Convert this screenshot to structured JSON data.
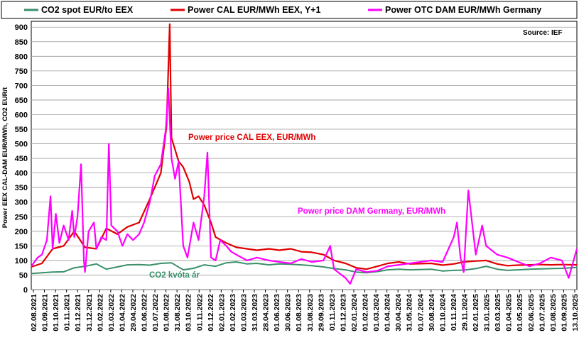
{
  "chart_data": {
    "type": "line",
    "ylabel": "Power EEX CAL-DAM EUR/MWh, CO2 EUR/t",
    "ylim": [
      0,
      920
    ],
    "yticks": [
      0,
      50,
      100,
      150,
      200,
      250,
      300,
      350,
      400,
      450,
      500,
      550,
      600,
      650,
      700,
      750,
      800,
      850,
      900
    ],
    "x_start": "2021-08-02",
    "x_end": "2025-10-13",
    "xticks": [
      "02.08.2021",
      "01.09.2021",
      "01.10.2021",
      "01.11.2021",
      "01.12.2021",
      "31.12.2021",
      "01.02.2022",
      "01.03.2022",
      "01.04.2022",
      "29.04.2022",
      "01.06.2022",
      "01.07.2022",
      "01.08.2022",
      "31.08.2022",
      "03.10.2022",
      "01.11.2022",
      "01.12.2022",
      "02.01.2023",
      "01.02.2023",
      "01.03.2023",
      "31.03.2023",
      "28.04.2023",
      "01.06.2023",
      "30.06.2023",
      "01.08.2023",
      "31.08.2023",
      "29.09.2023",
      "01.11.2023",
      "01.12.2023",
      "02.01.2024",
      "01.02.2024",
      "01.03.2024",
      "01.04.2024",
      "30.04.2024",
      "31.05.2024",
      "01.07.2024",
      "30.08.2024",
      "01.10.2024",
      "01.11.2024",
      "29.11.2024",
      "02.01.2025",
      "31.01.2025",
      "03.03.2025",
      "01.04.2025",
      "01.05.2025",
      "02.06.2025",
      "01.07.2025",
      "01.08.2025",
      "01.09.2025",
      "13.10.2025"
    ],
    "grid": true,
    "legend_position": "top",
    "source": "Source: IEF",
    "series": [
      {
        "name": "CO2 spot EUR/to EEX",
        "color": "#3a8f6a",
        "points": [
          [
            "2021-08-02",
            55
          ],
          [
            "2021-09-01",
            58
          ],
          [
            "2021-10-01",
            60
          ],
          [
            "2021-11-01",
            61
          ],
          [
            "2021-12-01",
            75
          ],
          [
            "2021-12-31",
            80
          ],
          [
            "2022-02-01",
            88
          ],
          [
            "2022-03-01",
            70
          ],
          [
            "2022-04-01",
            78
          ],
          [
            "2022-04-29",
            85
          ],
          [
            "2022-06-01",
            86
          ],
          [
            "2022-07-01",
            84
          ],
          [
            "2022-08-01",
            90
          ],
          [
            "2022-08-31",
            92
          ],
          [
            "2022-10-03",
            68
          ],
          [
            "2022-11-01",
            73
          ],
          [
            "2022-12-01",
            85
          ],
          [
            "2023-01-02",
            80
          ],
          [
            "2023-02-01",
            92
          ],
          [
            "2023-03-01",
            95
          ],
          [
            "2023-03-31",
            88
          ],
          [
            "2023-04-28",
            90
          ],
          [
            "2023-06-01",
            85
          ],
          [
            "2023-06-30",
            88
          ],
          [
            "2023-08-01",
            87
          ],
          [
            "2023-08-31",
            85
          ],
          [
            "2023-09-29",
            82
          ],
          [
            "2023-11-01",
            78
          ],
          [
            "2023-12-01",
            72
          ],
          [
            "2024-01-02",
            68
          ],
          [
            "2024-02-01",
            60
          ],
          [
            "2024-03-01",
            58
          ],
          [
            "2024-04-01",
            62
          ],
          [
            "2024-04-30",
            68
          ],
          [
            "2024-05-31",
            70
          ],
          [
            "2024-07-01",
            68
          ],
          [
            "2024-08-30",
            70
          ],
          [
            "2024-10-01",
            64
          ],
          [
            "2024-11-01",
            66
          ],
          [
            "2024-11-29",
            67
          ],
          [
            "2025-01-02",
            72
          ],
          [
            "2025-01-31",
            80
          ],
          [
            "2025-03-03",
            70
          ],
          [
            "2025-04-01",
            66
          ],
          [
            "2025-05-01",
            68
          ],
          [
            "2025-06-02",
            70
          ],
          [
            "2025-07-01",
            71
          ],
          [
            "2025-08-01",
            72
          ],
          [
            "2025-09-01",
            73
          ],
          [
            "2025-10-13",
            76
          ]
        ]
      },
      {
        "name": "Power CAL EUR/MWh EEX, Y+1",
        "color": "#e00000",
        "points": [
          [
            "2021-08-02",
            78
          ],
          [
            "2021-09-01",
            90
          ],
          [
            "2021-10-01",
            140
          ],
          [
            "2021-11-01",
            150
          ],
          [
            "2021-12-01",
            200
          ],
          [
            "2021-12-31",
            145
          ],
          [
            "2022-02-01",
            140
          ],
          [
            "2022-03-01",
            210
          ],
          [
            "2022-04-01",
            190
          ],
          [
            "2022-04-29",
            215
          ],
          [
            "2022-06-01",
            230
          ],
          [
            "2022-07-01",
            310
          ],
          [
            "2022-08-01",
            400
          ],
          [
            "2022-08-17",
            560
          ],
          [
            "2022-08-26",
            910
          ],
          [
            "2022-08-31",
            520
          ],
          [
            "2022-09-20",
            440
          ],
          [
            "2022-10-03",
            420
          ],
          [
            "2022-10-20",
            370
          ],
          [
            "2022-11-01",
            310
          ],
          [
            "2022-11-15",
            320
          ],
          [
            "2022-12-01",
            290
          ],
          [
            "2022-12-20",
            230
          ],
          [
            "2023-01-02",
            180
          ],
          [
            "2023-02-01",
            160
          ],
          [
            "2023-03-01",
            145
          ],
          [
            "2023-03-31",
            140
          ],
          [
            "2023-04-28",
            135
          ],
          [
            "2023-06-01",
            140
          ],
          [
            "2023-06-30",
            135
          ],
          [
            "2023-08-01",
            140
          ],
          [
            "2023-08-31",
            130
          ],
          [
            "2023-09-29",
            128
          ],
          [
            "2023-11-01",
            120
          ],
          [
            "2023-12-01",
            100
          ],
          [
            "2024-01-02",
            90
          ],
          [
            "2024-02-01",
            75
          ],
          [
            "2024-03-01",
            70
          ],
          [
            "2024-04-01",
            80
          ],
          [
            "2024-04-30",
            90
          ],
          [
            "2024-05-31",
            95
          ],
          [
            "2024-07-01",
            88
          ],
          [
            "2024-08-30",
            90
          ],
          [
            "2024-10-01",
            84
          ],
          [
            "2024-11-01",
            88
          ],
          [
            "2024-11-29",
            95
          ],
          [
            "2025-01-02",
            98
          ],
          [
            "2025-01-31",
            100
          ],
          [
            "2025-03-03",
            88
          ],
          [
            "2025-04-01",
            82
          ],
          [
            "2025-05-01",
            84
          ],
          [
            "2025-06-02",
            85
          ],
          [
            "2025-07-01",
            86
          ],
          [
            "2025-08-01",
            85
          ],
          [
            "2025-09-01",
            86
          ],
          [
            "2025-10-13",
            85
          ]
        ]
      },
      {
        "name": "Power OTC DAM EUR/MWh Germany",
        "color": "#ff00ff",
        "points": [
          [
            "2021-08-02",
            80
          ],
          [
            "2021-08-20",
            110
          ],
          [
            "2021-09-01",
            120
          ],
          [
            "2021-09-15",
            170
          ],
          [
            "2021-09-25",
            320
          ],
          [
            "2021-10-01",
            140
          ],
          [
            "2021-10-10",
            260
          ],
          [
            "2021-10-20",
            160
          ],
          [
            "2021-11-01",
            220
          ],
          [
            "2021-11-15",
            170
          ],
          [
            "2021-11-25",
            270
          ],
          [
            "2021-12-01",
            180
          ],
          [
            "2021-12-10",
            250
          ],
          [
            "2021-12-20",
            430
          ],
          [
            "2021-12-28",
            100
          ],
          [
            "2021-12-31",
            60
          ],
          [
            "2022-01-10",
            200
          ],
          [
            "2022-01-25",
            230
          ],
          [
            "2022-02-01",
            140
          ],
          [
            "2022-02-15",
            180
          ],
          [
            "2022-03-01",
            170
          ],
          [
            "2022-03-08",
            500
          ],
          [
            "2022-03-15",
            220
          ],
          [
            "2022-04-01",
            200
          ],
          [
            "2022-04-15",
            150
          ],
          [
            "2022-04-29",
            190
          ],
          [
            "2022-05-15",
            170
          ],
          [
            "2022-06-01",
            190
          ],
          [
            "2022-06-15",
            230
          ],
          [
            "2022-07-01",
            300
          ],
          [
            "2022-07-15",
            390
          ],
          [
            "2022-08-01",
            430
          ],
          [
            "2022-08-15",
            550
          ],
          [
            "2022-08-22",
            690
          ],
          [
            "2022-08-31",
            450
          ],
          [
            "2022-09-10",
            380
          ],
          [
            "2022-09-20",
            440
          ],
          [
            "2022-10-03",
            150
          ],
          [
            "2022-10-15",
            110
          ],
          [
            "2022-11-01",
            230
          ],
          [
            "2022-11-15",
            170
          ],
          [
            "2022-12-01",
            320
          ],
          [
            "2022-12-10",
            470
          ],
          [
            "2022-12-20",
            110
          ],
          [
            "2023-01-02",
            100
          ],
          [
            "2023-01-15",
            170
          ],
          [
            "2023-02-01",
            150
          ],
          [
            "2023-02-15",
            130
          ],
          [
            "2023-03-01",
            120
          ],
          [
            "2023-03-31",
            100
          ],
          [
            "2023-04-28",
            110
          ],
          [
            "2023-06-01",
            100
          ],
          [
            "2023-06-30",
            95
          ],
          [
            "2023-08-01",
            90
          ],
          [
            "2023-08-31",
            105
          ],
          [
            "2023-09-29",
            95
          ],
          [
            "2023-11-01",
            100
          ],
          [
            "2023-11-20",
            150
          ],
          [
            "2023-12-01",
            70
          ],
          [
            "2024-01-02",
            40
          ],
          [
            "2024-01-15",
            20
          ],
          [
            "2024-02-01",
            70
          ],
          [
            "2024-03-01",
            60
          ],
          [
            "2024-04-01",
            65
          ],
          [
            "2024-04-30",
            80
          ],
          [
            "2024-05-31",
            85
          ],
          [
            "2024-07-01",
            90
          ],
          [
            "2024-08-30",
            100
          ],
          [
            "2024-10-01",
            95
          ],
          [
            "2024-11-01",
            180
          ],
          [
            "2024-11-10",
            230
          ],
          [
            "2024-11-20",
            110
          ],
          [
            "2024-11-29",
            60
          ],
          [
            "2024-12-12",
            340
          ],
          [
            "2025-01-02",
            120
          ],
          [
            "2025-01-20",
            220
          ],
          [
            "2025-01-31",
            150
          ],
          [
            "2025-03-03",
            120
          ],
          [
            "2025-04-01",
            110
          ],
          [
            "2025-05-01",
            95
          ],
          [
            "2025-06-02",
            80
          ],
          [
            "2025-07-01",
            90
          ],
          [
            "2025-08-01",
            110
          ],
          [
            "2025-09-01",
            100
          ],
          [
            "2025-09-20",
            40
          ],
          [
            "2025-10-13",
            140
          ]
        ]
      }
    ],
    "annotations": [
      {
        "text": "Power price CAL EEX, EUR/MWh",
        "color": "#e00000"
      },
      {
        "text": "Power price DAM Germany, EUR/MWh",
        "color": "#ff00ff"
      },
      {
        "text": "CO2 kvóta ár",
        "color": "#3a8f6a"
      }
    ]
  }
}
